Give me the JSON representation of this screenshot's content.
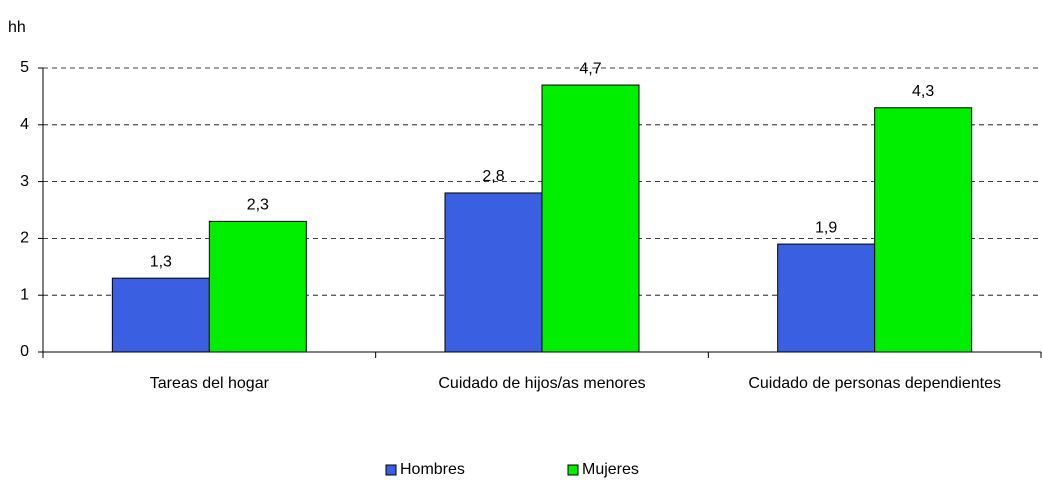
{
  "chart_data": {
    "type": "bar",
    "y_label": "hh",
    "categories": [
      "Tareas del hogar",
      "Cuidado de hijos/as menores",
      "Cuidado de personas dependientes"
    ],
    "series": [
      {
        "name": "Hombres",
        "color": "#3a5fe0",
        "values": [
          1.3,
          2.8,
          1.9
        ],
        "value_labels": [
          "1,3",
          "2,8",
          "1,9"
        ]
      },
      {
        "name": "Mujeres",
        "color": "#00ee00",
        "values": [
          2.3,
          4.7,
          4.3
        ],
        "value_labels": [
          "2,3",
          "4,7",
          "4,3"
        ]
      }
    ],
    "ylim": [
      0,
      5
    ],
    "yticks": [
      0,
      1,
      2,
      3,
      4,
      5
    ],
    "grid": true,
    "legend": "bottom"
  }
}
